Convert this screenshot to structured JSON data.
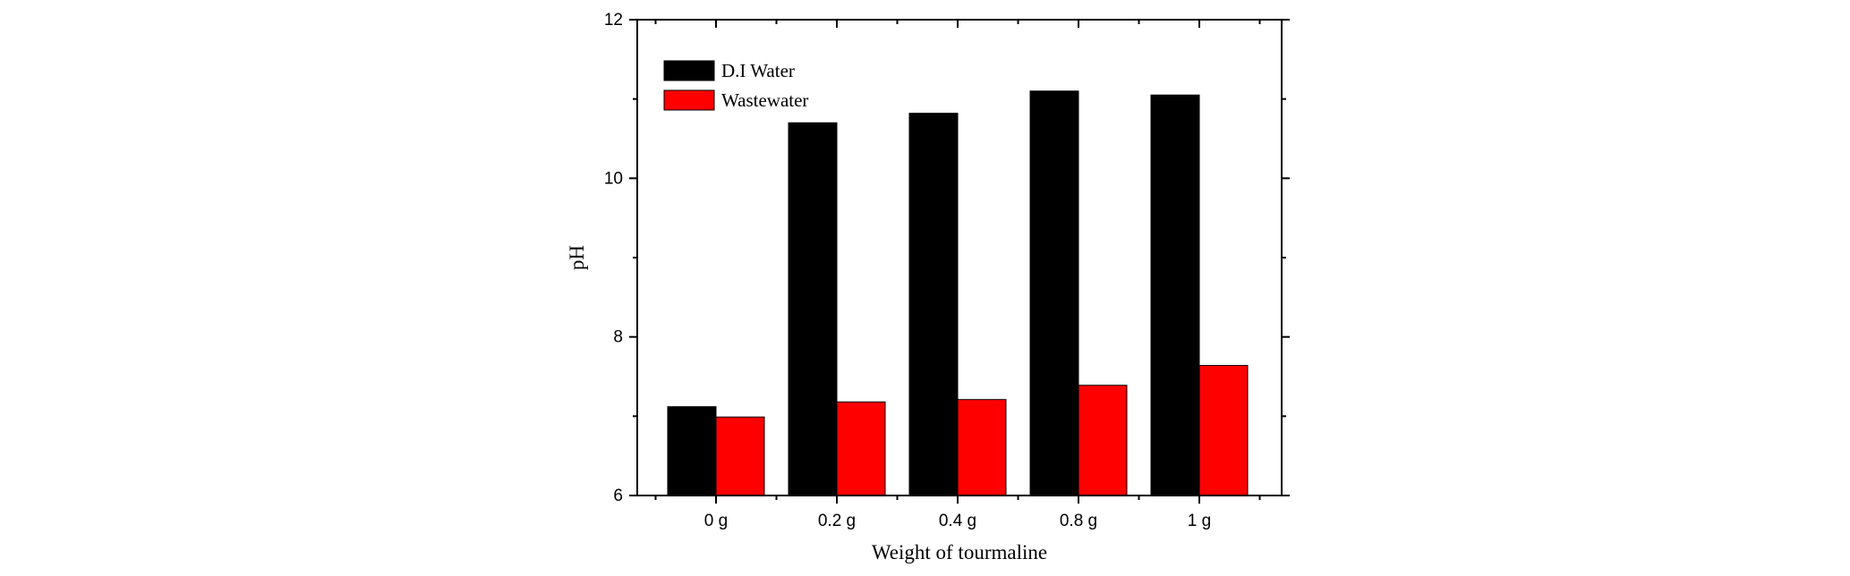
{
  "chart_data": {
    "type": "bar",
    "title": "",
    "xlabel": "Weight of tourmaline",
    "ylabel": "pH",
    "categories": [
      "0 g",
      "0.2 g",
      "0.4 g",
      "0.8 g",
      "1 g"
    ],
    "series": [
      {
        "name": "D.I Water",
        "values": [
          7.12,
          10.7,
          10.82,
          11.1,
          11.05
        ],
        "color": "#000000"
      },
      {
        "name": "Wastewater",
        "values": [
          6.99,
          7.18,
          7.21,
          7.39,
          7.64
        ],
        "color": "#ff0000"
      }
    ],
    "ylim": [
      6,
      12
    ],
    "yticks": [
      "6",
      "8",
      "10",
      "12"
    ],
    "grid": false,
    "legend_position": "top-left"
  }
}
